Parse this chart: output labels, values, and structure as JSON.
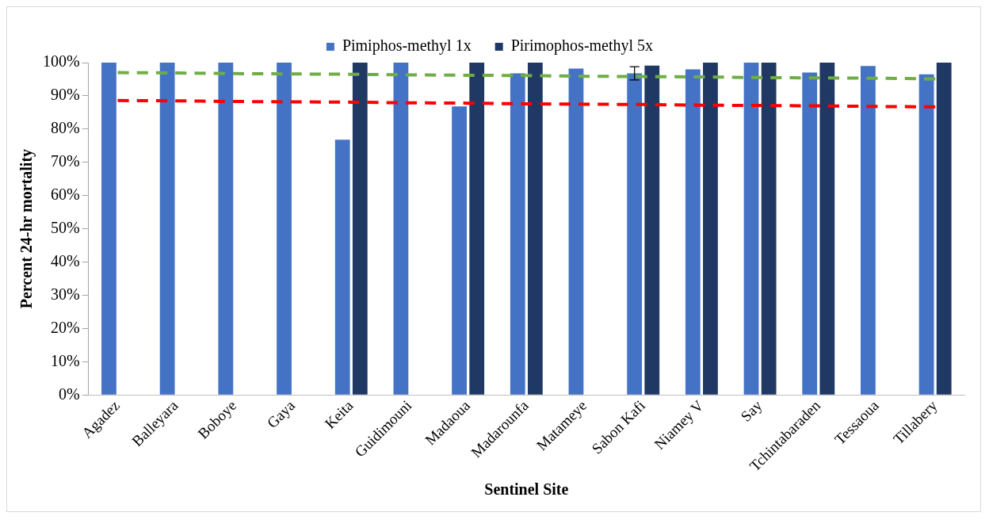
{
  "chart_data": {
    "type": "bar",
    "xlabel": "Sentinel Site",
    "ylabel": "Percent 24-hr mortality",
    "categories": [
      "Agadez",
      "Balleyara",
      "Boboye",
      "Gaya",
      "Keita",
      "Guidimouni",
      "Madaoua",
      "Madarounfa",
      "Matameye",
      "Sabon Kafi",
      "Niamey V",
      "Say",
      "Tchintabaraden",
      "Tessaoua",
      "Tillabery"
    ],
    "series": [
      {
        "name": "Pimiphos-methyl 1x",
        "color": "#4472c4",
        "values": [
          100,
          100,
          100,
          100,
          76.8,
          100,
          86.8,
          96.8,
          98.2,
          96.8,
          98,
          100,
          97,
          99,
          96.5
        ],
        "errors": [
          null,
          null,
          null,
          null,
          null,
          null,
          null,
          null,
          null,
          2,
          null,
          null,
          null,
          null,
          null
        ]
      },
      {
        "name": "Pirimophos-methyl 5x",
        "color": "#203864",
        "values": [
          null,
          null,
          null,
          null,
          100,
          null,
          100,
          100,
          null,
          99.1,
          100,
          100,
          100,
          null,
          100
        ]
      },
      {
        "type": "line",
        "color": "#70ad47",
        "line_style": "dashed",
        "values": [
          97.0,
          96.9,
          96.7,
          96.6,
          96.5,
          96.3,
          96.2,
          96.1,
          95.9,
          95.8,
          95.7,
          95.5,
          95.4,
          95.3,
          95.1
        ]
      },
      {
        "type": "line",
        "color": "#ff0000",
        "line_style": "dashed",
        "values": [
          88.6,
          88.5,
          88.3,
          88.2,
          88.1,
          87.9,
          87.8,
          87.6,
          87.5,
          87.4,
          87.2,
          87.1,
          87.0,
          86.8,
          86.7
        ]
      }
    ],
    "ylim": [
      0,
      100
    ],
    "yticks": [
      {
        "value": 0,
        "label": "0%"
      },
      {
        "value": 10,
        "label": "10%"
      },
      {
        "value": 20,
        "label": "20%"
      },
      {
        "value": 30,
        "label": "30%"
      },
      {
        "value": 40,
        "label": "40%"
      },
      {
        "value": 50,
        "label": "50%"
      },
      {
        "value": 60,
        "label": "60%"
      },
      {
        "value": 70,
        "label": "70%"
      },
      {
        "value": 80,
        "label": "80%"
      },
      {
        "value": 90,
        "label": "90%"
      },
      {
        "value": 100,
        "label": "100%"
      }
    ],
    "grid": false,
    "legend": "top"
  }
}
